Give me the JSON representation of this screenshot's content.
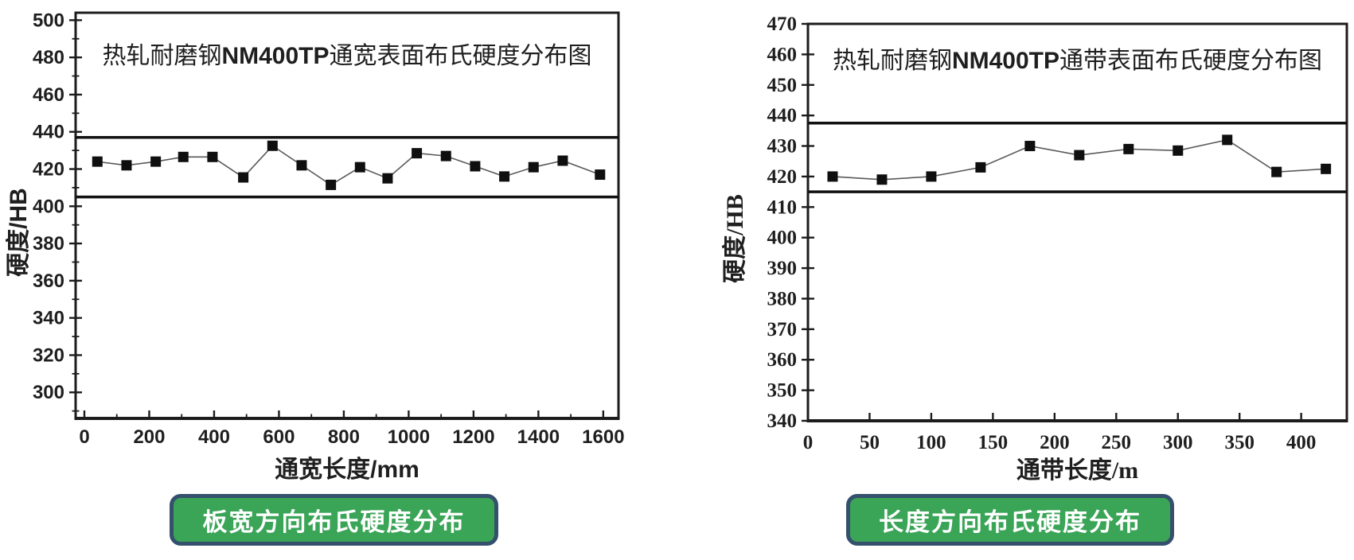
{
  "page": {
    "background": "#ffffff"
  },
  "buttons": [
    {
      "label": "板宽方向布氏硬度分布",
      "fill": "#3aa457",
      "border": "#34506d",
      "text_color": "#ffffff"
    },
    {
      "label": "长度方向布氏硬度分布",
      "fill": "#3aa457",
      "border": "#34506d",
      "text_color": "#ffffff"
    }
  ],
  "chart_data": [
    {
      "type": "line",
      "title": "热轧耐磨钢NM400TP通宽表面布氏硬度分布图",
      "xlabel": "通宽长度/mm",
      "ylabel": "硬度/HB",
      "xlim": [
        -27,
        1647
      ],
      "ylim": [
        286,
        504
      ],
      "x_ticks": [
        0,
        200,
        400,
        600,
        800,
        1000,
        1200,
        1400,
        1600
      ],
      "x_minor_step": 100,
      "y_ticks": [
        300,
        320,
        340,
        360,
        380,
        400,
        420,
        440,
        460,
        480,
        500
      ],
      "y_minor_step": 10,
      "grid": false,
      "legend": "none",
      "tick_font": "sans",
      "x": [
        40,
        130,
        220,
        305,
        395,
        490,
        580,
        670,
        760,
        850,
        935,
        1025,
        1115,
        1205,
        1295,
        1385,
        1475,
        1590
      ],
      "values": [
        424,
        422,
        424,
        426.5,
        426.5,
        415.5,
        432.5,
        422,
        411.5,
        421,
        415,
        428.5,
        427,
        421.5,
        416,
        421,
        424.5,
        417
      ],
      "limit_lines": {
        "upper": 437,
        "lower": 405
      },
      "marker": "square",
      "colors": {
        "line": "#5a5a5a",
        "marker": "#0f0f0f",
        "frame": "#1c1c1c",
        "limit": "#111111",
        "text": "#1f1f1f"
      }
    },
    {
      "type": "line",
      "title": "热轧耐磨钢NM400TP通带表面布氏硬度分布图",
      "xlabel": "通带长度/m",
      "ylabel": "硬度/HB",
      "xlim": [
        0,
        437
      ],
      "ylim": [
        340,
        470
      ],
      "x_ticks": [
        0,
        50,
        100,
        150,
        200,
        250,
        300,
        350,
        400
      ],
      "x_minor_step": null,
      "y_ticks": [
        340,
        350,
        360,
        370,
        380,
        390,
        400,
        410,
        420,
        430,
        440,
        450,
        460,
        470
      ],
      "y_minor_step": null,
      "grid": false,
      "legend": "none",
      "tick_font": "serif",
      "x": [
        20,
        60,
        100,
        140,
        180,
        220,
        260,
        300,
        340,
        380,
        420
      ],
      "values": [
        420,
        419,
        420,
        423,
        430,
        427,
        429,
        428.5,
        432,
        421.5,
        422.5
      ],
      "limit_lines": {
        "upper": 437.5,
        "lower": 415
      },
      "marker": "square",
      "colors": {
        "line": "#5a5a5a",
        "marker": "#0f0f0f",
        "frame": "#1c1c1c",
        "limit": "#111111",
        "text": "#1f1f1f"
      }
    }
  ]
}
